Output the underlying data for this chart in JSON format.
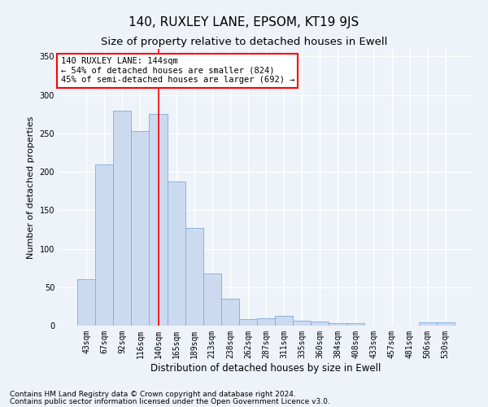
{
  "title": "140, RUXLEY LANE, EPSOM, KT19 9JS",
  "subtitle": "Size of property relative to detached houses in Ewell",
  "xlabel": "Distribution of detached houses by size in Ewell",
  "ylabel": "Number of detached properties",
  "categories": [
    "43sqm",
    "67sqm",
    "92sqm",
    "116sqm",
    "140sqm",
    "165sqm",
    "189sqm",
    "213sqm",
    "238sqm",
    "262sqm",
    "287sqm",
    "311sqm",
    "335sqm",
    "360sqm",
    "384sqm",
    "408sqm",
    "433sqm",
    "457sqm",
    "481sqm",
    "506sqm",
    "530sqm"
  ],
  "values": [
    60,
    210,
    280,
    253,
    275,
    187,
    127,
    68,
    35,
    8,
    10,
    13,
    6,
    5,
    3,
    3,
    0,
    0,
    0,
    4,
    4
  ],
  "bar_color": "#ccdaf0",
  "bar_edge_color": "#7aaedd",
  "vline_x_index": 4,
  "vline_color": "red",
  "annotation_text": "140 RUXLEY LANE: 144sqm\n← 54% of detached houses are smaller (824)\n45% of semi-detached houses are larger (692) →",
  "annotation_box_color": "white",
  "annotation_box_edge": "red",
  "ylim": [
    0,
    360
  ],
  "yticks": [
    0,
    50,
    100,
    150,
    200,
    250,
    300,
    350
  ],
  "footer_line1": "Contains HM Land Registry data © Crown copyright and database right 2024.",
  "footer_line2": "Contains public sector information licensed under the Open Government Licence v3.0.",
  "background_color": "#eef2f9",
  "grid_color": "white",
  "title_fontsize": 11,
  "subtitle_fontsize": 9.5,
  "ylabel_fontsize": 8,
  "xlabel_fontsize": 8.5,
  "tick_fontsize": 7,
  "annot_fontsize": 7.5,
  "footer_fontsize": 6.5
}
